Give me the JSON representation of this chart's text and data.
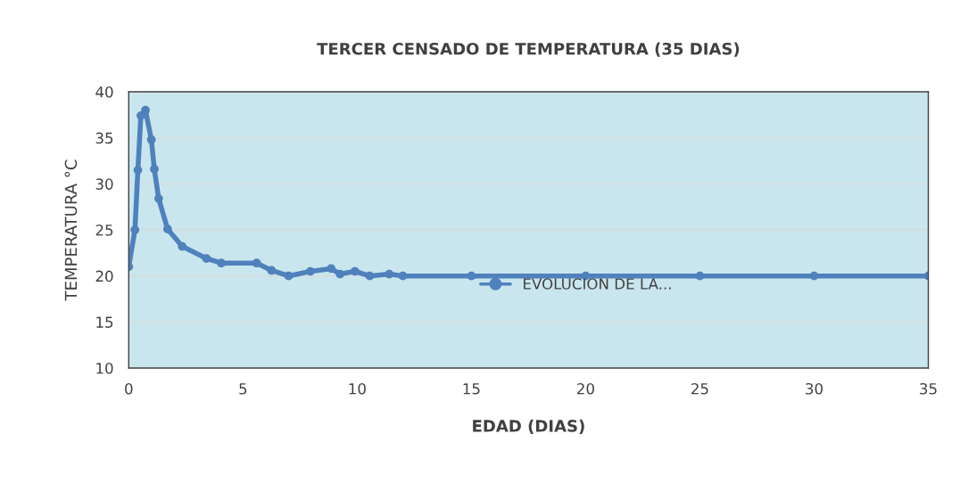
{
  "chart_data": {
    "type": "line",
    "title": "TERCER CENSADO DE TEMPERATURA (35 DIAS)",
    "xlabel": "EDAD (DIAS)",
    "ylabel": "TEMPERATURA °C",
    "series": [
      {
        "name": "EVOLUCION DE LA...",
        "color": "#4f81bd",
        "x": [
          0,
          0.27,
          0.4,
          0.53,
          0.73,
          0.99,
          1.12,
          1.31,
          1.7,
          2.34,
          3.4,
          4.05,
          5.6,
          6.25,
          7.0,
          7.95,
          8.86,
          9.25,
          9.9,
          10.55,
          11.4,
          12,
          15,
          20,
          25,
          30,
          35
        ],
        "values": [
          21,
          25,
          31.5,
          37.4,
          38,
          34.8,
          31.6,
          28.4,
          25.1,
          23.2,
          21.9,
          21.4,
          21.4,
          20.6,
          20,
          20.5,
          20.8,
          20.2,
          20.5,
          20,
          20.2,
          20,
          20,
          20,
          20,
          20,
          20
        ]
      }
    ],
    "xlim": [
      0,
      35
    ],
    "xticks": [
      0,
      5,
      10,
      15,
      20,
      25,
      30,
      35
    ],
    "ylim": [
      10,
      40
    ],
    "yticks": [
      10,
      15,
      20,
      25,
      30,
      35,
      40
    ],
    "grid": "y",
    "legend": "center",
    "marker": "circle",
    "line_style": "solid"
  }
}
